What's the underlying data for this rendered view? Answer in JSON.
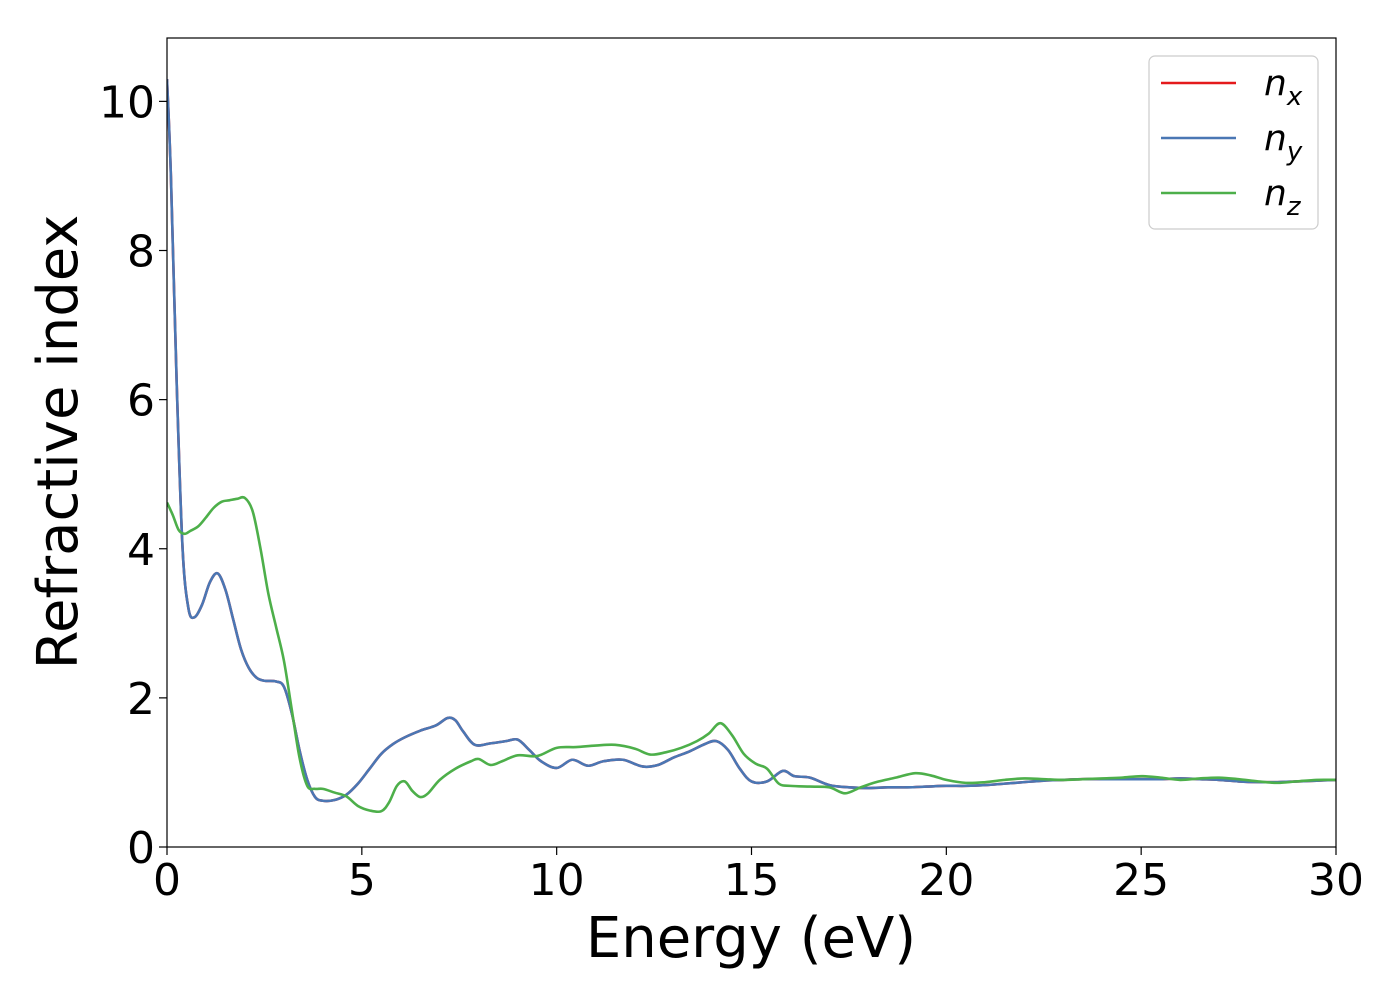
{
  "chart_data": {
    "type": "line",
    "xlabel": "Energy (eV)",
    "ylabel": "Refractive index",
    "xlim": [
      0,
      30
    ],
    "ylim": [
      0,
      10.85
    ],
    "xticks": [
      0,
      5,
      10,
      15,
      20,
      25,
      30
    ],
    "xtick_labels": [
      "0",
      "5",
      "10",
      "15",
      "20",
      "25",
      "30"
    ],
    "yticks": [
      0,
      2,
      4,
      6,
      8,
      10
    ],
    "ytick_labels": [
      "0",
      "2",
      "4",
      "6",
      "8",
      "10"
    ],
    "grid": false,
    "legend_position": "top-right",
    "series": [
      {
        "name": "n",
        "subscript": "x",
        "color": "#e41a1c",
        "x": [
          0,
          0.1,
          0.25,
          0.4,
          0.55,
          0.7,
          0.9,
          1.1,
          1.3,
          1.5,
          1.7,
          1.9,
          2.1,
          2.3,
          2.5,
          2.8,
          3.0,
          3.2,
          3.4,
          3.6,
          3.8,
          4.0,
          4.3,
          4.6,
          4.9,
          5.2,
          5.5,
          5.8,
          6.1,
          6.5,
          6.9,
          7.2,
          7.4,
          7.6,
          7.9,
          8.3,
          8.7,
          9.0,
          9.3,
          9.6,
          10.0,
          10.4,
          10.8,
          11.2,
          11.7,
          12.2,
          12.6,
          13.0,
          13.4,
          13.8,
          14.1,
          14.4,
          14.7,
          15.0,
          15.4,
          15.8,
          16.1,
          16.5,
          17.0,
          17.5,
          18.0,
          18.5,
          19.0,
          19.5,
          20.0,
          20.5,
          21.0,
          21.5,
          22.0,
          22.5,
          23.0,
          23.5,
          24.0,
          24.5,
          25.0,
          25.5,
          26.0,
          26.5,
          27.0,
          27.5,
          28.0,
          28.5,
          29.0,
          29.5,
          30.0
        ],
        "values": [
          10.3,
          9.0,
          6.2,
          4.0,
          3.2,
          3.08,
          3.25,
          3.55,
          3.67,
          3.45,
          3.05,
          2.65,
          2.4,
          2.27,
          2.23,
          2.22,
          2.15,
          1.8,
          1.3,
          0.9,
          0.67,
          0.62,
          0.63,
          0.7,
          0.85,
          1.05,
          1.25,
          1.38,
          1.47,
          1.56,
          1.63,
          1.73,
          1.7,
          1.55,
          1.37,
          1.39,
          1.42,
          1.44,
          1.3,
          1.15,
          1.06,
          1.17,
          1.09,
          1.15,
          1.17,
          1.08,
          1.1,
          1.2,
          1.28,
          1.38,
          1.42,
          1.3,
          1.05,
          0.88,
          0.88,
          1.02,
          0.95,
          0.93,
          0.83,
          0.8,
          0.79,
          0.8,
          0.8,
          0.81,
          0.82,
          0.82,
          0.83,
          0.85,
          0.87,
          0.89,
          0.9,
          0.91,
          0.91,
          0.91,
          0.91,
          0.91,
          0.92,
          0.91,
          0.9,
          0.88,
          0.87,
          0.87,
          0.88,
          0.89,
          0.9
        ]
      },
      {
        "name": "n",
        "subscript": "y",
        "color": "#4a77b4",
        "x": [
          0,
          0.1,
          0.25,
          0.4,
          0.55,
          0.7,
          0.9,
          1.1,
          1.3,
          1.5,
          1.7,
          1.9,
          2.1,
          2.3,
          2.5,
          2.8,
          3.0,
          3.2,
          3.4,
          3.6,
          3.8,
          4.0,
          4.3,
          4.6,
          4.9,
          5.2,
          5.5,
          5.8,
          6.1,
          6.5,
          6.9,
          7.2,
          7.4,
          7.6,
          7.9,
          8.3,
          8.7,
          9.0,
          9.3,
          9.6,
          10.0,
          10.4,
          10.8,
          11.2,
          11.7,
          12.2,
          12.6,
          13.0,
          13.4,
          13.8,
          14.1,
          14.4,
          14.7,
          15.0,
          15.4,
          15.8,
          16.1,
          16.5,
          17.0,
          17.5,
          18.0,
          18.5,
          19.0,
          19.5,
          20.0,
          20.5,
          21.0,
          21.5,
          22.0,
          22.5,
          23.0,
          23.5,
          24.0,
          24.5,
          25.0,
          25.5,
          26.0,
          26.5,
          27.0,
          27.5,
          28.0,
          28.5,
          29.0,
          29.5,
          30.0
        ],
        "values": [
          10.3,
          9.0,
          6.2,
          4.0,
          3.2,
          3.08,
          3.25,
          3.55,
          3.67,
          3.45,
          3.05,
          2.65,
          2.4,
          2.27,
          2.23,
          2.22,
          2.15,
          1.8,
          1.3,
          0.9,
          0.67,
          0.62,
          0.63,
          0.7,
          0.85,
          1.05,
          1.25,
          1.38,
          1.47,
          1.56,
          1.63,
          1.73,
          1.7,
          1.55,
          1.37,
          1.39,
          1.42,
          1.44,
          1.3,
          1.15,
          1.06,
          1.17,
          1.09,
          1.15,
          1.17,
          1.08,
          1.1,
          1.2,
          1.28,
          1.38,
          1.42,
          1.3,
          1.05,
          0.88,
          0.88,
          1.02,
          0.95,
          0.93,
          0.83,
          0.8,
          0.79,
          0.8,
          0.8,
          0.81,
          0.82,
          0.82,
          0.83,
          0.85,
          0.87,
          0.89,
          0.9,
          0.91,
          0.91,
          0.91,
          0.91,
          0.91,
          0.92,
          0.91,
          0.9,
          0.88,
          0.87,
          0.87,
          0.88,
          0.89,
          0.9
        ]
      },
      {
        "name": "n",
        "subscript": "z",
        "color": "#4daf4a",
        "x": [
          0,
          0.15,
          0.3,
          0.45,
          0.6,
          0.8,
          1.0,
          1.2,
          1.4,
          1.6,
          1.8,
          2.0,
          2.2,
          2.4,
          2.6,
          2.8,
          3.0,
          3.2,
          3.4,
          3.6,
          3.8,
          4.0,
          4.3,
          4.6,
          4.9,
          5.2,
          5.5,
          5.7,
          5.9,
          6.1,
          6.3,
          6.5,
          6.7,
          7.0,
          7.4,
          7.8,
          8.0,
          8.3,
          8.6,
          9.0,
          9.5,
          10.0,
          10.5,
          11.0,
          11.5,
          12.0,
          12.4,
          12.8,
          13.2,
          13.6,
          13.9,
          14.2,
          14.5,
          14.8,
          15.1,
          15.4,
          15.7,
          16.0,
          16.5,
          17.0,
          17.4,
          17.8,
          18.2,
          18.7,
          19.2,
          19.6,
          20.0,
          20.5,
          21.0,
          21.5,
          22.0,
          22.5,
          23.0,
          23.5,
          24.0,
          24.5,
          25.0,
          25.5,
          26.0,
          26.5,
          27.0,
          27.5,
          28.0,
          28.5,
          29.0,
          29.5,
          30.0
        ],
        "values": [
          4.62,
          4.45,
          4.25,
          4.2,
          4.24,
          4.3,
          4.42,
          4.55,
          4.63,
          4.65,
          4.67,
          4.68,
          4.5,
          4.0,
          3.4,
          2.95,
          2.5,
          1.85,
          1.2,
          0.82,
          0.78,
          0.78,
          0.73,
          0.68,
          0.55,
          0.49,
          0.48,
          0.6,
          0.82,
          0.88,
          0.75,
          0.67,
          0.72,
          0.9,
          1.05,
          1.15,
          1.18,
          1.1,
          1.15,
          1.23,
          1.22,
          1.33,
          1.34,
          1.36,
          1.37,
          1.32,
          1.24,
          1.27,
          1.33,
          1.42,
          1.52,
          1.66,
          1.5,
          1.25,
          1.12,
          1.05,
          0.85,
          0.82,
          0.81,
          0.8,
          0.72,
          0.8,
          0.87,
          0.93,
          0.99,
          0.96,
          0.9,
          0.86,
          0.87,
          0.9,
          0.92,
          0.91,
          0.9,
          0.91,
          0.92,
          0.93,
          0.95,
          0.93,
          0.9,
          0.92,
          0.93,
          0.91,
          0.88,
          0.86,
          0.88,
          0.9,
          0.9
        ]
      }
    ]
  }
}
